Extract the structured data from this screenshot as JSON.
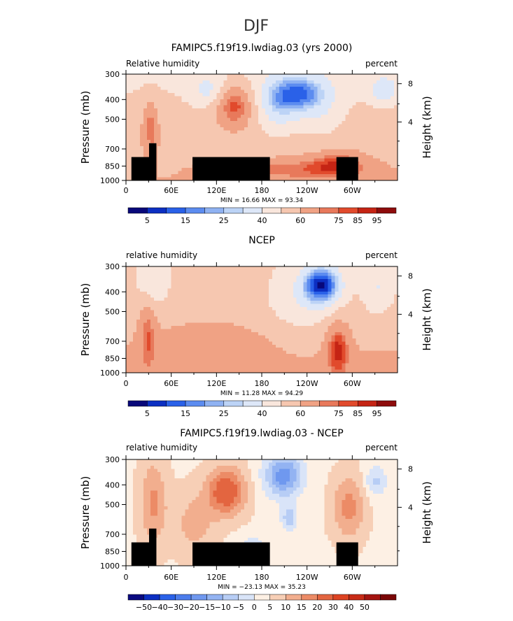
{
  "figure": {
    "title": "DJF"
  },
  "colors": {
    "abs_palette": [
      "#08087a",
      "#0c2fc2",
      "#2a61e8",
      "#5c8cf0",
      "#8fb2f2",
      "#bcd3f6",
      "#dde7f8",
      "#f9e6dc",
      "#f6c7b0",
      "#f0a284",
      "#e8795b",
      "#e14a2c",
      "#c52414",
      "#8e0c0c"
    ],
    "diff_palette": [
      "#0a0a80",
      "#0c2fc2",
      "#2a61e8",
      "#4c7ceb",
      "#6f98ef",
      "#93b3f2",
      "#b7cdf5",
      "#d9e4f8",
      "#fdf0e4",
      "#f7cfb6",
      "#f2ae8e",
      "#ec8b66",
      "#e36540",
      "#dd4322",
      "#c82b16",
      "#a41410",
      "#7a0606"
    ],
    "land": "#000000"
  },
  "chart_data": [
    {
      "type": "heatmap",
      "title": "FAMIPC5.f19f19.lwdiag.03 (yrs 2000)",
      "left_label": "Relative humidity",
      "right_label": "percent",
      "ylabel": "Pressure (mb)",
      "y2label": "Height (km)",
      "xticks": [
        "0",
        "60E",
        "120E",
        "180",
        "120W",
        "60W"
      ],
      "yticks": [
        "300",
        "400",
        "500",
        "700",
        "850",
        "1000"
      ],
      "y2ticks": [
        "8",
        "4"
      ],
      "stats": "MIN =   16.66   MAX =   93.34",
      "colorbar_labels": [
        "5",
        "15",
        "25",
        "40",
        "60",
        "75",
        "85",
        "95"
      ],
      "colorbar_levels": [
        5,
        10,
        15,
        20,
        25,
        30,
        40,
        50,
        60,
        70,
        75,
        80,
        85,
        90,
        95
      ],
      "xlim": [
        0,
        360
      ],
      "ylim": [
        1000,
        300
      ],
      "min": 16.66,
      "max": 93.34
    },
    {
      "type": "heatmap",
      "title": "NCEP",
      "left_label": "relative humidity",
      "right_label": "percent",
      "ylabel": "Pressure (mb)",
      "y2label": "Height (km)",
      "xticks": [
        "0",
        "60E",
        "120E",
        "180",
        "120W",
        "60W"
      ],
      "yticks": [
        "300",
        "400",
        "500",
        "700",
        "850",
        "1000"
      ],
      "y2ticks": [
        "8",
        "4"
      ],
      "stats": "MIN =   11.28   MAX =   94.29",
      "colorbar_labels": [
        "5",
        "15",
        "25",
        "40",
        "60",
        "75",
        "85",
        "95"
      ],
      "colorbar_levels": [
        5,
        10,
        15,
        20,
        25,
        30,
        40,
        50,
        60,
        70,
        75,
        80,
        85,
        90,
        95
      ],
      "xlim": [
        0,
        360
      ],
      "ylim": [
        1000,
        300
      ],
      "min": 11.28,
      "max": 94.29
    },
    {
      "type": "heatmap",
      "title": "FAMIPC5.f19f19.lwdiag.03 - NCEP",
      "left_label": "relative humidity",
      "right_label": "percent",
      "ylabel": "Pressure (mb)",
      "y2label": "Height (km)",
      "xticks": [
        "0",
        "60E",
        "120E",
        "180",
        "120W",
        "60W"
      ],
      "yticks": [
        "300",
        "400",
        "500",
        "700",
        "850",
        "1000"
      ],
      "y2ticks": [
        "8",
        "4"
      ],
      "stats": "MIN = −23.13   MAX =   35.23",
      "colorbar_labels": [
        "−50",
        "−40",
        "−30",
        "−20",
        "−15",
        "−10",
        "−5",
        "0",
        "5",
        "10",
        "15",
        "20",
        "30",
        "40",
        "50"
      ],
      "colorbar_levels": [
        -50,
        -40,
        -30,
        -20,
        -15,
        -10,
        -5,
        0,
        5,
        10,
        15,
        20,
        30,
        40,
        50
      ],
      "xlim": [
        0,
        360
      ],
      "ylim": [
        1000,
        300
      ],
      "min": -23.13,
      "max": 35.23
    }
  ]
}
